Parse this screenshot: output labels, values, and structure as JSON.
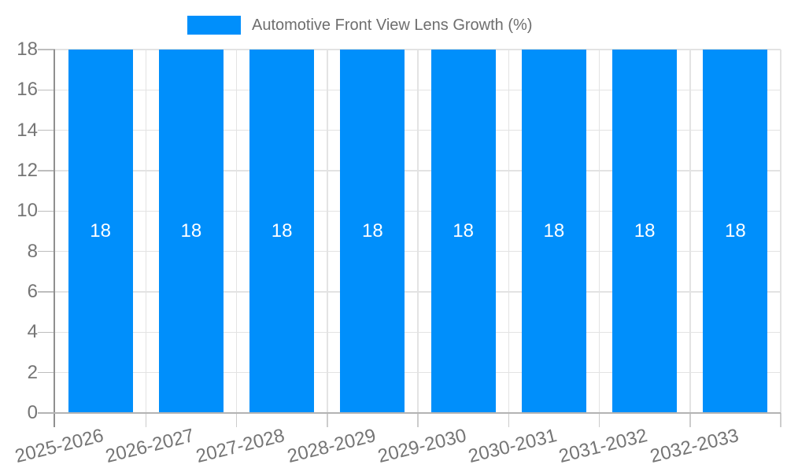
{
  "chart_data": {
    "type": "bar",
    "title": "Automotive Front View Lens Growth (%)",
    "legend_label": "Automotive Front View Lens Growth (%)",
    "legend_position": "top",
    "categories": [
      "2025-2026",
      "2026-2027",
      "2027-2028",
      "2028-2029",
      "2029-2030",
      "2030-2031",
      "2031-2032",
      "2032-2033"
    ],
    "values": [
      18,
      18,
      18,
      18,
      18,
      18,
      18,
      18
    ],
    "data_labels": [
      "18",
      "18",
      "18",
      "18",
      "18",
      "18",
      "18",
      "18"
    ],
    "xlabel": "",
    "ylabel": "",
    "ylim": [
      0,
      18
    ],
    "y_ticks": [
      0,
      2,
      4,
      6,
      8,
      10,
      12,
      14,
      16,
      18
    ],
    "grid": true,
    "colors": {
      "bar": "#008FFB",
      "bar_label": "#FFFFFF",
      "axis_text": "#757575",
      "legend_text": "#6E6E6E",
      "gridline": "#E3E3E3",
      "tick": "#BDBDBD",
      "x_tick": "#CCCCCC",
      "axis_line": "#8F8F8F",
      "baseline": "#B3B3B3",
      "background": "#FFFFFF"
    }
  }
}
